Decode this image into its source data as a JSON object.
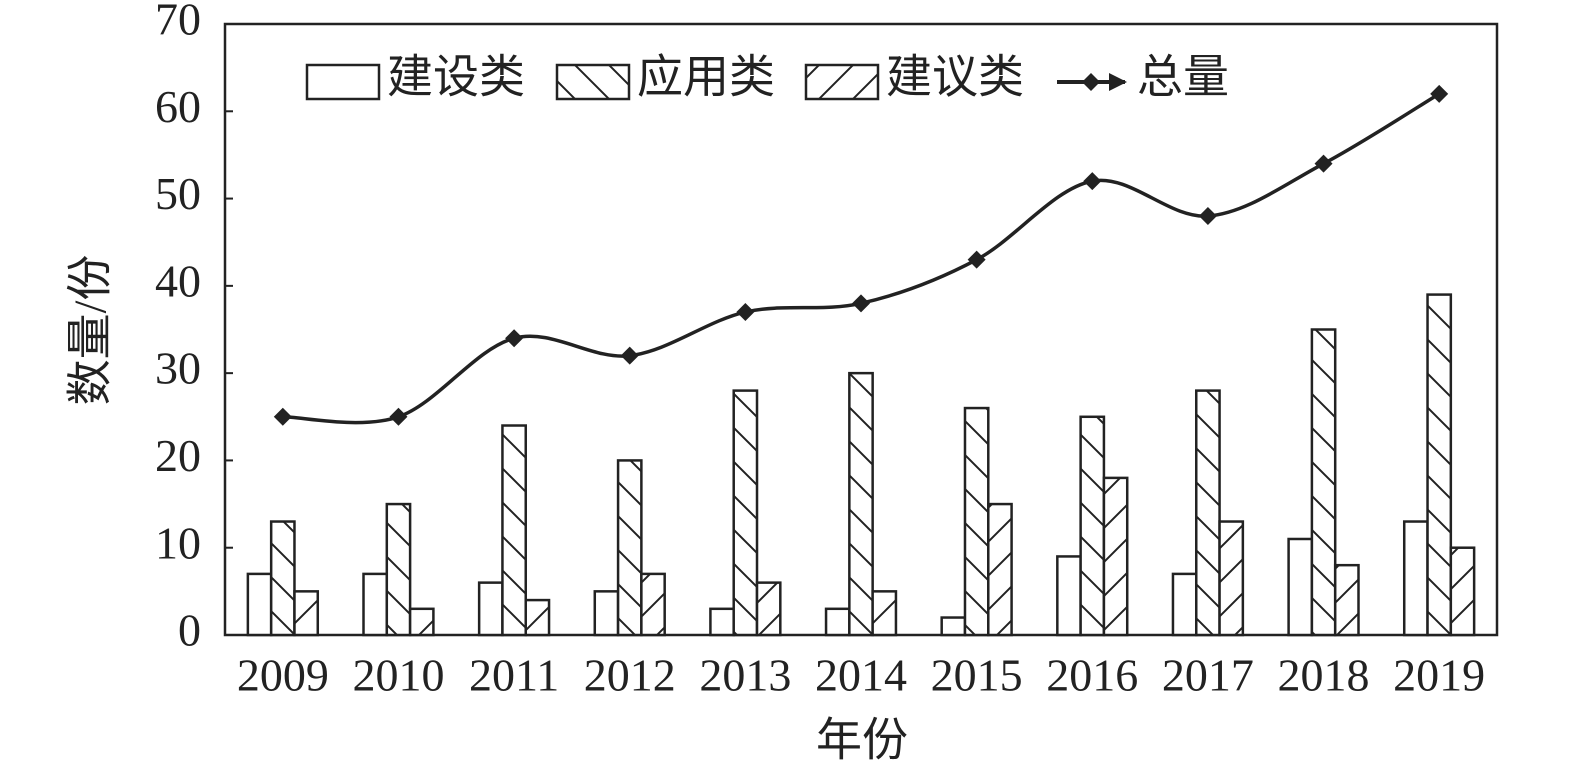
{
  "chart_data": {
    "type": "bar",
    "x_label": "年份",
    "y_label": "数量/份",
    "categories": [
      "2009",
      "2010",
      "2011",
      "2012",
      "2013",
      "2014",
      "2015",
      "2016",
      "2017",
      "2018",
      "2019"
    ],
    "series": [
      {
        "name": "建设类",
        "color": "#222222",
        "pattern": "none",
        "values": [
          7,
          7,
          6,
          5,
          3,
          3,
          2,
          9,
          7,
          11,
          13
        ]
      },
      {
        "name": "应用类",
        "color": "#222222",
        "pattern": "backslash",
        "values": [
          13,
          15,
          24,
          20,
          28,
          30,
          26,
          25,
          28,
          35,
          39
        ]
      },
      {
        "name": "建议类",
        "color": "#222222",
        "pattern": "slash",
        "values": [
          5,
          3,
          4,
          7,
          6,
          5,
          15,
          18,
          13,
          8,
          10
        ]
      },
      {
        "name": "总量",
        "color": "#222222",
        "type": "line",
        "smooth": true,
        "values": [
          25,
          25,
          34,
          32,
          37,
          38,
          43,
          52,
          48,
          54,
          62
        ]
      }
    ],
    "ylim": [
      0,
      70
    ],
    "yticks": [
      0,
      10,
      20,
      30,
      40,
      50,
      60,
      70
    ],
    "grid": false,
    "legend": "top"
  }
}
